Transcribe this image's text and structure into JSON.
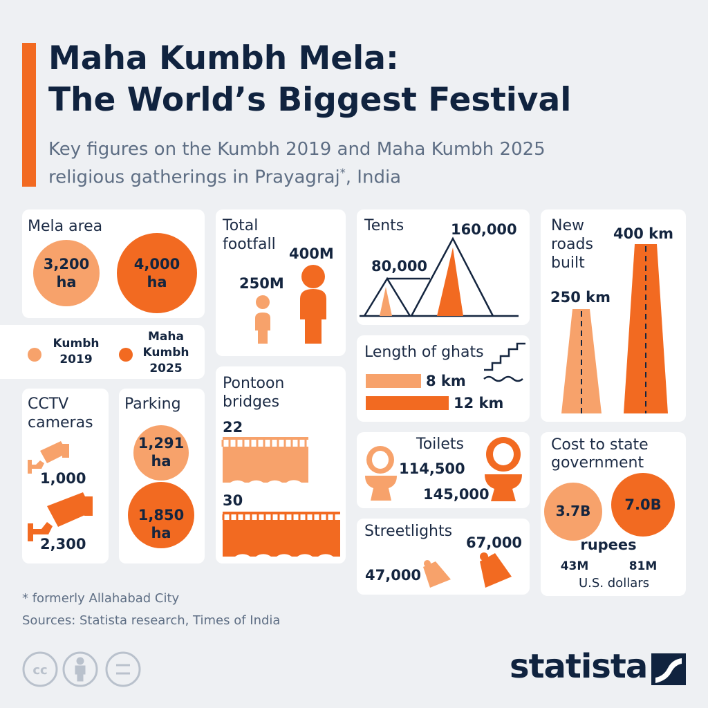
{
  "header": {
    "title": [
      "Maha Kumbh Mela:",
      "The World’s Biggest Festival"
    ],
    "subtitle_line1": "Key figures on the Kumbh 2019 and Maha Kumbh 2025",
    "subtitle_line2": "religious gatherings in Prayagraj",
    "subtitle_mark": "*",
    "subtitle_end": ", India"
  },
  "legend": {
    "kumbh_2019": [
      "Kumbh",
      "2019"
    ],
    "maha_kumbh_2025": [
      "Maha",
      "Kumbh",
      "2025"
    ]
  },
  "panels": {
    "mela_area": {
      "title": "Mela area",
      "kumbh_2019": [
        "3,200",
        "ha"
      ],
      "maha_kumbh_2025": [
        "4,000",
        "ha"
      ]
    },
    "total_footfall": {
      "title": [
        "Total",
        "footfall"
      ],
      "kumbh_2019": "250M",
      "maha_kumbh_2025": "400M"
    },
    "tents": {
      "title": "Tents",
      "kumbh_2019": "80,000",
      "maha_kumbh_2025": "160,000"
    },
    "new_roads": {
      "title": [
        "New",
        "roads",
        "built"
      ],
      "kumbh_2019": "250 km",
      "maha_kumbh_2025": "400 km"
    },
    "length_of_ghats": {
      "title": "Length of ghats",
      "kumbh_2019": "8 km",
      "maha_kumbh_2025": "12 km"
    },
    "cctv": {
      "title": [
        "CCTV",
        "cameras"
      ],
      "kumbh_2019": "1,000",
      "maha_kumbh_2025": "2,300"
    },
    "parking": {
      "title": "Parking",
      "kumbh_2019": [
        "1,291",
        "ha"
      ],
      "maha_kumbh_2025": [
        "1,850",
        "ha"
      ]
    },
    "pontoon": {
      "title": [
        "Pontoon",
        "bridges"
      ],
      "kumbh_2019": "22",
      "maha_kumbh_2025": "30"
    },
    "toilets": {
      "title": "Toilets",
      "kumbh_2019": "114,500",
      "maha_kumbh_2025": "145,000"
    },
    "streetlights": {
      "title": "Streetlights",
      "kumbh_2019": "47,000",
      "maha_kumbh_2025": "67,000"
    },
    "cost": {
      "title": [
        "Cost to state",
        "government"
      ],
      "kumbh_2019": "3.7B",
      "maha_kumbh_2025": "7.0B",
      "unit": "rupees",
      "usd_2019": "43M",
      "usd_2025": "81M",
      "usd_unit": "U.S. dollars"
    }
  },
  "footer": {
    "note": "* formerly Allahabad City",
    "sources": "Sources: Statista research, Times of India",
    "brand": "statista"
  }
}
